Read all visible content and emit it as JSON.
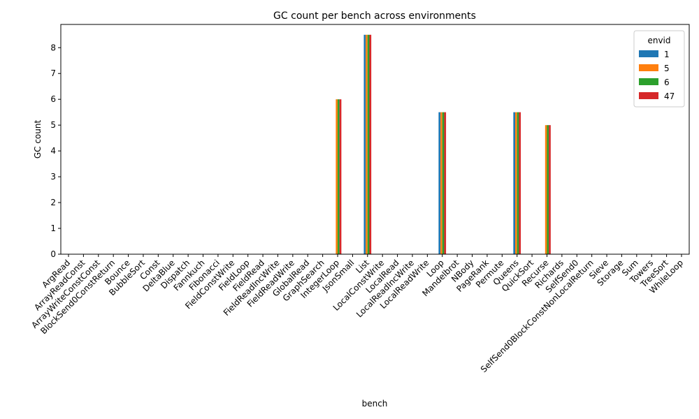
{
  "chart_data": {
    "type": "bar",
    "title": "GC count per bench across environments",
    "xlabel": "bench",
    "ylabel": "GC count",
    "ylim": [
      0,
      8.9
    ],
    "yticks": [
      0,
      1,
      2,
      3,
      4,
      5,
      6,
      7,
      8
    ],
    "grid": false,
    "legend": {
      "title": "envid",
      "placement": "top-right"
    },
    "categories": [
      "ArgRead",
      "ArrayReadConst",
      "ArrayWriteConstConst",
      "BlockSend0ConstReturn",
      "Bounce",
      "BubbleSort",
      "Const",
      "DeltaBlue",
      "Dispatch",
      "Fannkuch",
      "Fibonacci",
      "FieldConstWrite",
      "FieldLoop",
      "FieldRead",
      "FieldReadIncWrite",
      "FieldReadWrite",
      "GlobalRead",
      "GraphSearch",
      "IntegerLoop",
      "JsonSmall",
      "List",
      "LocalConstWrite",
      "LocalRead",
      "LocalReadIncWrite",
      "LocalReadWrite",
      "Loop",
      "Mandelbrot",
      "NBody",
      "PageRank",
      "Permute",
      "Queens",
      "QuickSort",
      "Recurse",
      "Richards",
      "SelfSend0",
      "SelfSend0BlockConstNonLocalReturn",
      "Sieve",
      "Storage",
      "Sum",
      "Towers",
      "TreeSort",
      "WhileLoop"
    ],
    "series": [
      {
        "name": "1",
        "color": "#1f77b4",
        "values": [
          0,
          0,
          0,
          0,
          0,
          0,
          0,
          0,
          0,
          0,
          0,
          0,
          0,
          0,
          0,
          0,
          0,
          0,
          0,
          0,
          8.5,
          0,
          0,
          0,
          0,
          5.5,
          0,
          0,
          0,
          0,
          5.5,
          0,
          0,
          0,
          0,
          0,
          0,
          0,
          0,
          0,
          0,
          0
        ]
      },
      {
        "name": "5",
        "color": "#ff7f0e",
        "values": [
          0,
          0,
          0,
          0,
          0,
          0,
          0,
          0,
          0,
          0,
          0,
          0,
          0,
          0,
          0,
          0,
          0,
          0,
          6,
          0,
          8.5,
          0,
          0,
          0,
          0,
          5.5,
          0,
          0,
          0,
          0,
          5.5,
          0,
          5,
          0,
          0,
          0,
          0,
          0,
          0,
          0,
          0,
          0
        ]
      },
      {
        "name": "6",
        "color": "#2ca02c",
        "values": [
          0,
          0,
          0,
          0,
          0,
          0,
          0,
          0,
          0,
          0,
          0,
          0,
          0,
          0,
          0,
          0,
          0,
          0,
          6,
          0,
          8.5,
          0,
          0,
          0,
          0,
          5.5,
          0,
          0,
          0,
          0,
          5.5,
          0,
          5,
          0,
          0,
          0,
          0,
          0,
          0,
          0,
          0,
          0
        ]
      },
      {
        "name": "47",
        "color": "#d62728",
        "values": [
          0,
          0,
          0,
          0,
          0,
          0,
          0,
          0,
          0,
          0,
          0,
          0,
          0,
          0,
          0,
          0,
          0,
          0,
          6,
          0,
          8.5,
          0,
          0,
          0,
          0,
          5.5,
          0,
          0,
          0,
          0,
          5.5,
          0,
          5,
          0,
          0,
          0,
          0,
          0,
          0,
          0,
          0,
          0
        ]
      }
    ]
  }
}
